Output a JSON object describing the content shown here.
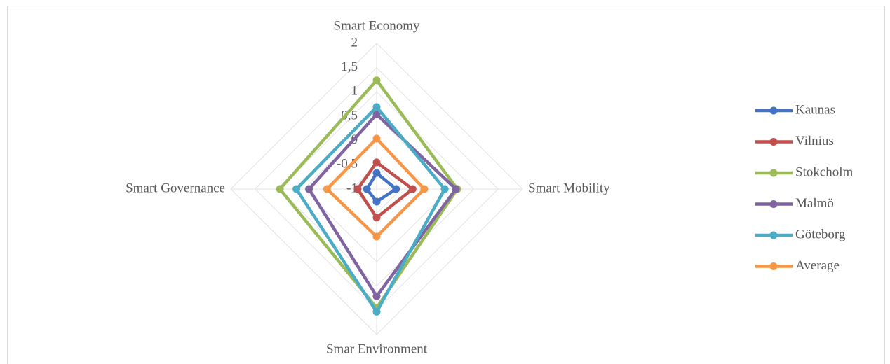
{
  "chart_data": {
    "type": "radar",
    "categories": [
      "Smart Economy",
      "Smart Mobility",
      "Smar Environment",
      "Smart Governance"
    ],
    "rlim": [
      -1,
      2
    ],
    "rticks": [
      {
        "value": -1,
        "label": "-1"
      },
      {
        "value": -0.5,
        "label": "-0,5"
      },
      0,
      {
        "value": 0.5,
        "label": "0,5"
      },
      1,
      {
        "value": 1.5,
        "label": "1,5"
      },
      2
    ],
    "grid": true,
    "legend": "right",
    "series": [
      {
        "name": "Kaunas",
        "color": "#4472c4",
        "values": [
          -0.67,
          -0.6,
          -0.74,
          -0.8
        ]
      },
      {
        "name": "Vilnius",
        "color": "#c0504d",
        "values": [
          -0.45,
          -0.26,
          -0.41,
          -0.61
        ]
      },
      {
        "name": "Stokcholm",
        "color": "#9bbb59",
        "values": [
          1.24,
          0.66,
          1.45,
          0.99
        ]
      },
      {
        "name": "Malmö",
        "color": "#8064a2",
        "values": [
          0.54,
          0.63,
          1.21,
          0.39
        ]
      },
      {
        "name": "Göteborg",
        "color": "#4bacc6",
        "values": [
          0.69,
          0.4,
          1.53,
          0.65
        ]
      },
      {
        "name": "Average",
        "color": "#f79646",
        "values": [
          0.04,
          -0.02,
          -0.02,
          0.02
        ]
      }
    ]
  }
}
